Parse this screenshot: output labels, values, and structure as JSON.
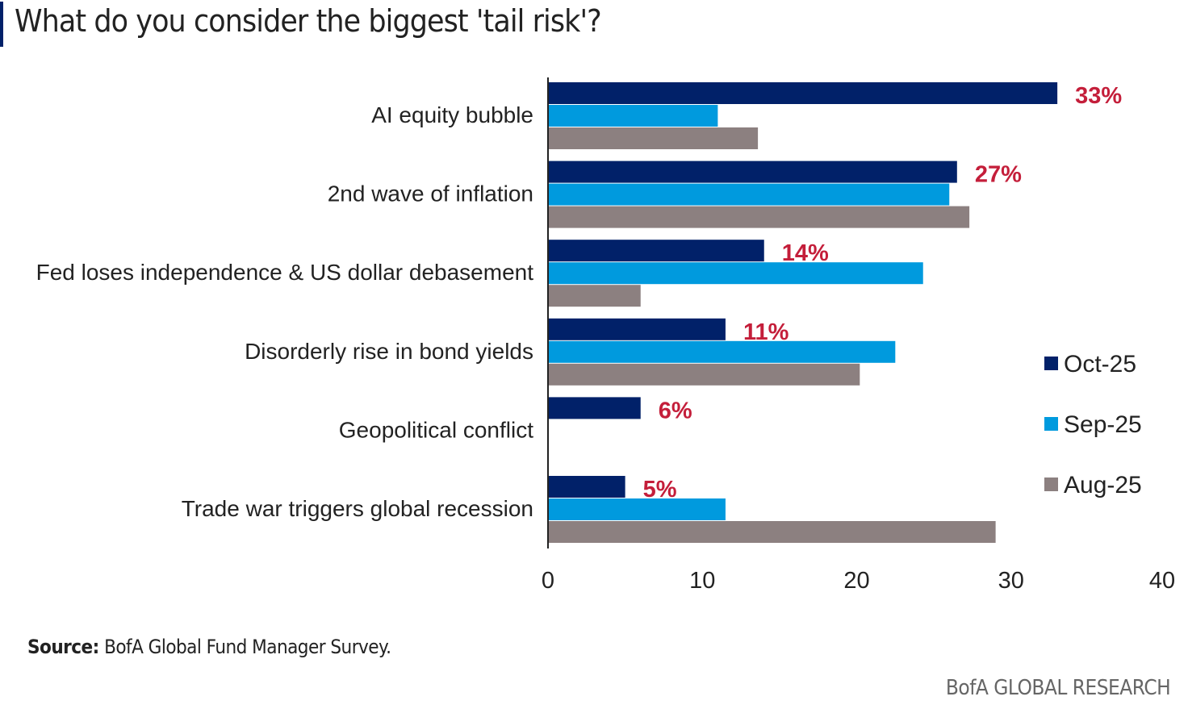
{
  "header": {
    "title": "What do you consider the biggest 'tail risk'?"
  },
  "source": {
    "label": "Source:",
    "text": "BofA Global Fund Manager Survey."
  },
  "footer": {
    "brand": "BofA GLOBAL RESEARCH"
  },
  "colors": {
    "Oct-25": "#012169",
    "Sep-25": "#009ADE",
    "Aug-25": "#8C8080",
    "label": "#C41E3A",
    "axis": "#222222"
  },
  "chart_data": {
    "type": "bar",
    "orientation": "horizontal",
    "title": "What do you consider the biggest 'tail risk'?",
    "categories": [
      "AI equity bubble",
      "2nd wave of inflation",
      "Fed loses independence & US dollar debasement",
      "Disorderly rise in bond yields",
      "Geopolitical conflict",
      "Trade war triggers global recession"
    ],
    "series": [
      {
        "name": "Oct-25",
        "values": [
          33,
          26.5,
          14,
          11.5,
          6,
          5
        ]
      },
      {
        "name": "Sep-25",
        "values": [
          11,
          26,
          null,
          22.5,
          null,
          11.5
        ]
      },
      {
        "name": "Aug-25",
        "values": [
          13.6,
          27.3,
          6,
          20.2,
          null,
          29
        ]
      }
    ],
    "sep25_fed_value": 24.3,
    "data_labels": [
      "33%",
      "27%",
      "14%",
      "11%",
      "6%",
      "5%"
    ],
    "xlim": [
      0,
      40
    ],
    "xticks": [
      0,
      10,
      20,
      30,
      40
    ],
    "legend": [
      "Oct-25",
      "Sep-25",
      "Aug-25"
    ],
    "legend_position": "right"
  }
}
